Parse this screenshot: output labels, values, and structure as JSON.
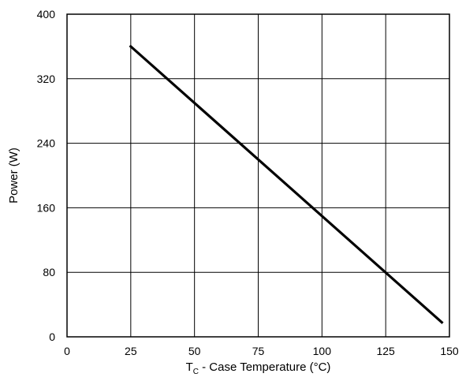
{
  "chart_data": {
    "type": "line",
    "xlabel_prefix": "T",
    "xlabel_subscript": "C",
    "xlabel_rest": " - Case Temperature (°C)",
    "ylabel": "Power (W)",
    "xlim": [
      0,
      150
    ],
    "ylim": [
      0,
      400
    ],
    "x_ticks": [
      0,
      25,
      50,
      75,
      100,
      125,
      150
    ],
    "y_ticks": [
      0,
      80,
      160,
      240,
      320,
      400
    ],
    "grid": true,
    "series": [
      {
        "x": [
          25,
          147
        ],
        "y": [
          360,
          18
        ],
        "color": "#000000"
      }
    ]
  }
}
